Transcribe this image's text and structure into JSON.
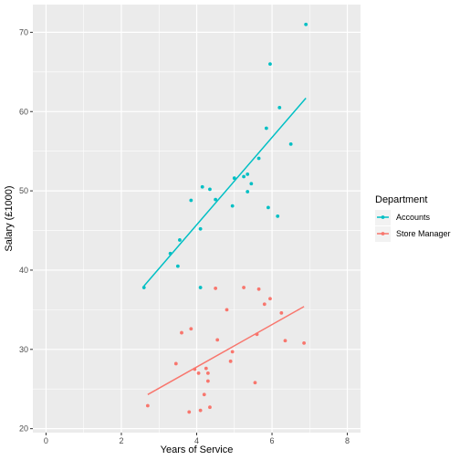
{
  "chart_data": {
    "type": "scatter",
    "title": "",
    "xlabel": "Years of Service",
    "ylabel": "Salary (£1000)",
    "xlim": [
      -0.35,
      8.35
    ],
    "ylim": [
      19.5,
      73.5
    ],
    "xticks": [
      0,
      2,
      4,
      6,
      8
    ],
    "yticks": [
      20,
      30,
      40,
      50,
      60,
      70
    ],
    "grid": true,
    "legend": {
      "title": "Department",
      "placement": "right"
    },
    "series": [
      {
        "name": "Accounts",
        "color": "#00BFC4",
        "points": [
          [
            2.6,
            37.8
          ],
          [
            3.3,
            42.1
          ],
          [
            3.5,
            40.5
          ],
          [
            3.55,
            43.8
          ],
          [
            3.85,
            48.8
          ],
          [
            4.1,
            45.2
          ],
          [
            4.1,
            37.8
          ],
          [
            4.15,
            50.5
          ],
          [
            4.35,
            50.2
          ],
          [
            4.5,
            48.9
          ],
          [
            4.95,
            48.1
          ],
          [
            5.0,
            51.6
          ],
          [
            5.25,
            51.8
          ],
          [
            5.35,
            49.9
          ],
          [
            5.35,
            52.1
          ],
          [
            5.45,
            50.9
          ],
          [
            5.65,
            54.1
          ],
          [
            5.85,
            57.9
          ],
          [
            5.9,
            47.9
          ],
          [
            5.95,
            66.0
          ],
          [
            6.15,
            46.8
          ],
          [
            6.2,
            60.5
          ],
          [
            6.5,
            55.9
          ],
          [
            6.9,
            71.0
          ]
        ],
        "fit": {
          "x": [
            2.6,
            6.9
          ],
          "y": [
            38.0,
            61.7
          ]
        }
      },
      {
        "name": "Store Manager",
        "color": "#F8766D",
        "points": [
          [
            2.7,
            22.9
          ],
          [
            3.45,
            28.2
          ],
          [
            3.6,
            32.1
          ],
          [
            3.8,
            22.1
          ],
          [
            3.85,
            32.6
          ],
          [
            3.95,
            27.5
          ],
          [
            4.05,
            27.0
          ],
          [
            4.1,
            22.3
          ],
          [
            4.2,
            24.3
          ],
          [
            4.25,
            27.6
          ],
          [
            4.3,
            27.0
          ],
          [
            4.3,
            26.0
          ],
          [
            4.35,
            22.7
          ],
          [
            4.5,
            37.7
          ],
          [
            4.55,
            31.2
          ],
          [
            4.8,
            35.0
          ],
          [
            4.9,
            28.5
          ],
          [
            4.95,
            29.7
          ],
          [
            5.25,
            37.8
          ],
          [
            5.55,
            25.8
          ],
          [
            5.6,
            31.9
          ],
          [
            5.65,
            37.6
          ],
          [
            5.8,
            35.7
          ],
          [
            5.95,
            36.4
          ],
          [
            6.25,
            34.6
          ],
          [
            6.35,
            31.1
          ],
          [
            6.85,
            30.8
          ]
        ],
        "fit": {
          "x": [
            2.7,
            6.85
          ],
          "y": [
            24.3,
            35.4
          ]
        }
      }
    ]
  }
}
